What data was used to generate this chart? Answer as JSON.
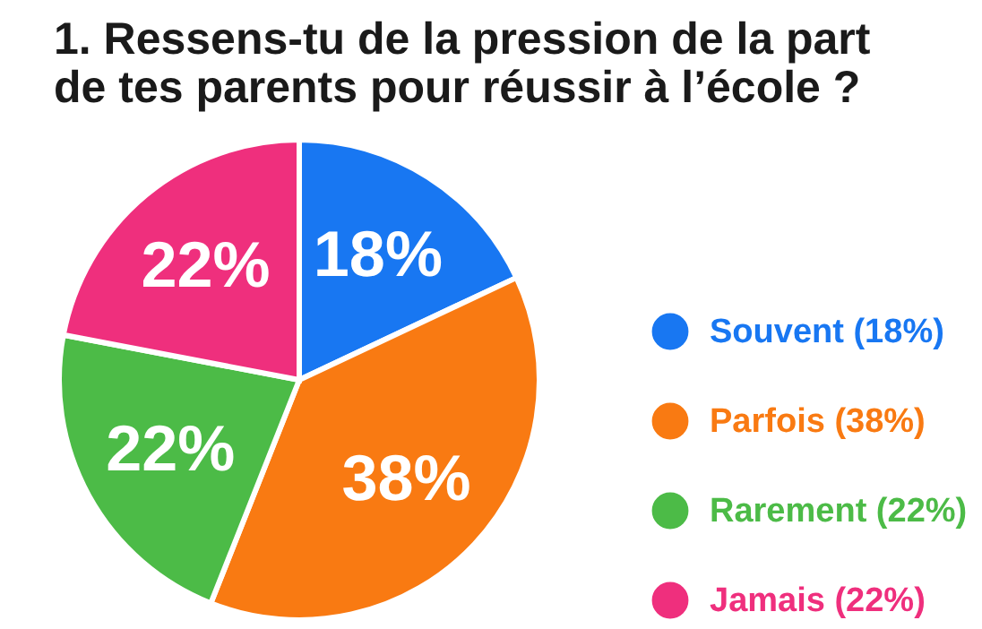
{
  "chart_data": {
    "type": "pie",
    "title": "1. Ressens-tu de la pression de la part de tes parents pour réussir à l’école ?",
    "categories": [
      "Souvent (18%)",
      "Parfois (38%)",
      "Rarement (22%)",
      "Jamais (22%)"
    ],
    "values": [
      18,
      38,
      22,
      22
    ],
    "colors": [
      "#1877f2",
      "#f97a12",
      "#4cbb47",
      "#ef2f7d"
    ],
    "value_labels": [
      "18%",
      "38%",
      "22%",
      "22%"
    ],
    "legend": "right"
  }
}
